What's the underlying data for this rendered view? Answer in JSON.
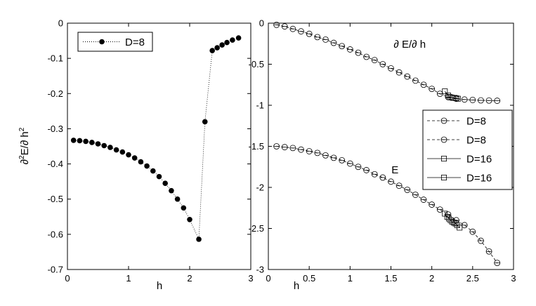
{
  "chart_data": [
    {
      "type": "scatter",
      "xlabel": "h",
      "ylabel_parts": [
        "∂",
        "2",
        "E/∂ h",
        "2"
      ],
      "xlim": [
        0,
        3
      ],
      "ylim": [
        -0.7,
        0
      ],
      "xticks": [
        0,
        1,
        2,
        3
      ],
      "yticks": [
        0,
        -0.1,
        -0.2,
        -0.3,
        -0.4,
        -0.5,
        -0.6,
        -0.7
      ],
      "grid": false,
      "legend_position": "top-left",
      "series": [
        {
          "name": "D=8",
          "marker": "filled-circle",
          "line": "dotted",
          "x": [
            0.1,
            0.2,
            0.3,
            0.4,
            0.5,
            0.6,
            0.7,
            0.8,
            0.9,
            1.0,
            1.1,
            1.2,
            1.3,
            1.4,
            1.5,
            1.6,
            1.7,
            1.8,
            1.9,
            2.0,
            2.15,
            2.25,
            2.37,
            2.45,
            2.53,
            2.61,
            2.7,
            2.8
          ],
          "y": [
            -0.333,
            -0.334,
            -0.336,
            -0.339,
            -0.343,
            -0.348,
            -0.353,
            -0.36,
            -0.366,
            -0.374,
            -0.383,
            -0.394,
            -0.406,
            -0.42,
            -0.436,
            -0.455,
            -0.476,
            -0.5,
            -0.525,
            -0.558,
            -0.614,
            -0.28,
            -0.078,
            -0.07,
            -0.062,
            -0.055,
            -0.048,
            -0.042
          ]
        }
      ]
    },
    {
      "type": "line",
      "xlabel": "h",
      "xlim": [
        0,
        3
      ],
      "ylim": [
        -3,
        0
      ],
      "xticks": [
        0,
        0.5,
        1,
        1.5,
        2,
        2.5,
        3
      ],
      "yticks": [
        0,
        -0.5,
        -1,
        -1.5,
        -2,
        -2.5,
        -3
      ],
      "grid": false,
      "legend_position": "right",
      "annotations": [
        {
          "text": "∂ E/∂ h",
          "x": 1.73,
          "y": -0.3
        },
        {
          "text": "E",
          "x": 1.55,
          "y": -1.83
        }
      ],
      "series": [
        {
          "name": "D=8",
          "marker": "open-circle",
          "line": "dashed",
          "x": [
            0.1,
            0.2,
            0.3,
            0.4,
            0.5,
            0.6,
            0.7,
            0.8,
            0.9,
            1.0,
            1.1,
            1.2,
            1.3,
            1.4,
            1.5,
            1.6,
            1.7,
            1.8,
            1.9,
            2.0,
            2.1,
            2.2,
            2.3,
            2.4,
            2.5,
            2.6,
            2.7,
            2.8
          ],
          "y": [
            -0.02,
            -0.04,
            -0.07,
            -0.1,
            -0.13,
            -0.17,
            -0.2,
            -0.24,
            -0.28,
            -0.32,
            -0.36,
            -0.41,
            -0.45,
            -0.5,
            -0.55,
            -0.6,
            -0.65,
            -0.7,
            -0.75,
            -0.8,
            -0.86,
            -0.9,
            -0.92,
            -0.93,
            -0.935,
            -0.94,
            -0.942,
            -0.945
          ]
        },
        {
          "name": "D=8",
          "marker": "open-circle",
          "line": "dashed",
          "x": [
            0.1,
            0.2,
            0.3,
            0.4,
            0.5,
            0.6,
            0.7,
            0.8,
            0.9,
            1.0,
            1.1,
            1.2,
            1.3,
            1.4,
            1.5,
            1.6,
            1.7,
            1.8,
            1.9,
            2.0,
            2.1,
            2.2,
            2.3,
            2.4,
            2.5,
            2.6,
            2.7,
            2.8
          ],
          "y": [
            -1.5,
            -1.51,
            -1.52,
            -1.54,
            -1.56,
            -1.58,
            -1.61,
            -1.64,
            -1.67,
            -1.71,
            -1.75,
            -1.79,
            -1.84,
            -1.88,
            -1.93,
            -1.98,
            -2.03,
            -2.09,
            -2.15,
            -2.21,
            -2.27,
            -2.33,
            -2.4,
            -2.46,
            -2.54,
            -2.65,
            -2.78,
            -2.92
          ]
        },
        {
          "name": "D=16",
          "marker": "open-square",
          "line": "solid",
          "x": [
            2.16,
            2.2,
            2.22,
            2.24,
            2.26,
            2.28,
            2.3,
            2.32
          ],
          "y": [
            -0.83,
            -0.88,
            -0.9,
            -0.905,
            -0.91,
            -0.91,
            -0.915,
            -0.92
          ]
        },
        {
          "name": "D=16",
          "marker": "open-square",
          "line": "solid",
          "x": [
            2.16,
            2.19,
            2.21,
            2.23,
            2.25,
            2.27,
            2.29,
            2.31,
            2.34
          ],
          "y": [
            -2.32,
            -2.36,
            -2.38,
            -2.4,
            -2.42,
            -2.43,
            -2.44,
            -2.46,
            -2.49
          ]
        }
      ]
    }
  ]
}
